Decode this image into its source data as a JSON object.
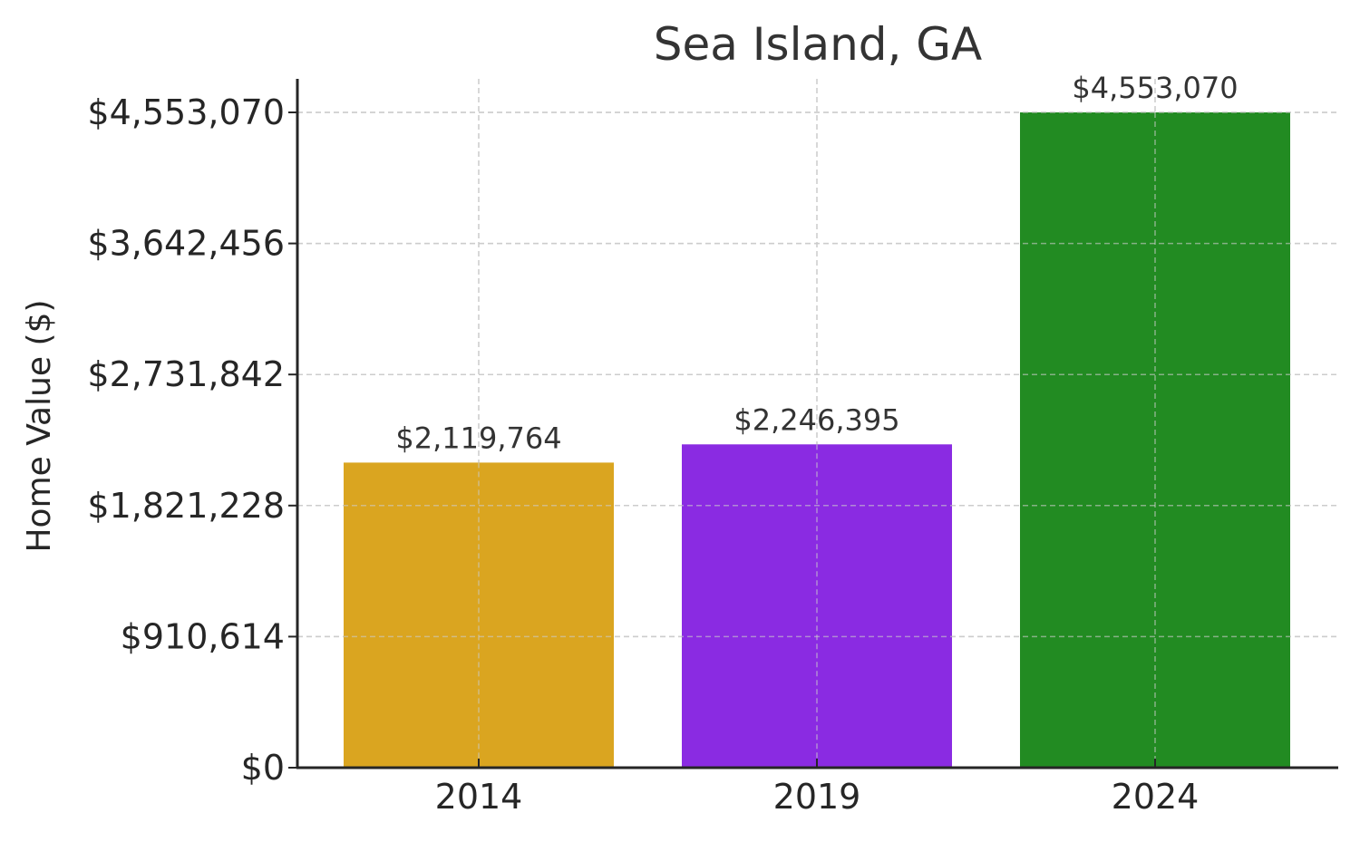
{
  "chart_data": {
    "type": "bar",
    "title": "Sea Island, GA",
    "xlabel": "",
    "ylabel": "Home Value ($)",
    "categories": [
      "2014",
      "2019",
      "2024"
    ],
    "values": [
      2119764,
      2246395,
      4553070
    ],
    "value_labels": [
      "$2,119,764",
      "$2,246,395",
      "$4,553,070"
    ],
    "bar_colors": [
      "#DAA520",
      "#8A2BE2",
      "#228B22"
    ],
    "ylim": [
      0,
      4553070
    ],
    "y_ticks": [
      0,
      910614,
      1821228,
      2731842,
      3642456,
      4553070
    ],
    "y_tick_labels": [
      "$0",
      "$910,614",
      "$1,821,228",
      "$2,731,842",
      "$3,642,456",
      "$4,553,070"
    ],
    "grid": true,
    "grid_style": "dashed",
    "legend": "none"
  }
}
